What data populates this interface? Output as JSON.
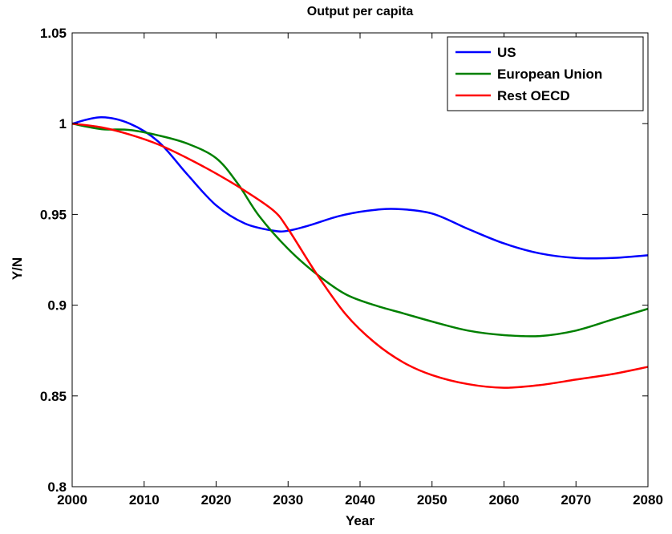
{
  "chart_data": {
    "type": "line",
    "title": "Output per capita",
    "xlabel": "Year",
    "ylabel": "Y/N",
    "xlim": [
      2000,
      2080
    ],
    "ylim": [
      0.8,
      1.05
    ],
    "xticks": [
      2000,
      2010,
      2020,
      2030,
      2040,
      2050,
      2060,
      2070,
      2080
    ],
    "yticks": [
      0.8,
      0.85,
      0.9,
      0.95,
      1.0,
      1.05
    ],
    "xtick_labels": [
      "2000",
      "2010",
      "2020",
      "2030",
      "2040",
      "2050",
      "2060",
      "2070",
      "2080"
    ],
    "ytick_labels": [
      "0.8",
      "0.85",
      "0.9",
      "0.95",
      "1",
      "1.05"
    ],
    "grid": false,
    "legend_position": "top-right",
    "series": [
      {
        "name": "US",
        "color": "#0000ff",
        "x": [
          2000,
          2004,
          2008,
          2012,
          2016,
          2020,
          2024,
          2028,
          2030,
          2033,
          2037,
          2041,
          2045,
          2050,
          2055,
          2060,
          2065,
          2070,
          2075,
          2080
        ],
        "y": [
          1.0,
          1.0035,
          1.0,
          0.99,
          0.972,
          0.955,
          0.945,
          0.941,
          0.941,
          0.944,
          0.949,
          0.952,
          0.953,
          0.9505,
          0.942,
          0.934,
          0.9285,
          0.926,
          0.926,
          0.9275
        ]
      },
      {
        "name": "European Union",
        "color": "#008000",
        "x": [
          2000,
          2004,
          2008,
          2012,
          2016,
          2020,
          2023,
          2026,
          2030,
          2034,
          2038,
          2042,
          2046,
          2050,
          2055,
          2060,
          2065,
          2070,
          2075,
          2080
        ],
        "y": [
          1.0,
          0.997,
          0.9965,
          0.9935,
          0.989,
          0.981,
          0.967,
          0.949,
          0.931,
          0.917,
          0.906,
          0.9,
          0.8955,
          0.891,
          0.886,
          0.8835,
          0.883,
          0.886,
          0.892,
          0.898
        ]
      },
      {
        "name": "Rest OECD",
        "color": "#ff0000",
        "x": [
          2000,
          2004,
          2008,
          2012,
          2016,
          2020,
          2024,
          2028,
          2030,
          2034,
          2038,
          2042,
          2046,
          2050,
          2055,
          2060,
          2065,
          2070,
          2075,
          2080
        ],
        "y": [
          1.0,
          0.998,
          0.994,
          0.9885,
          0.981,
          0.9725,
          0.963,
          0.952,
          0.942,
          0.917,
          0.895,
          0.8795,
          0.8685,
          0.8615,
          0.8565,
          0.8545,
          0.856,
          0.859,
          0.862,
          0.866
        ]
      }
    ]
  }
}
